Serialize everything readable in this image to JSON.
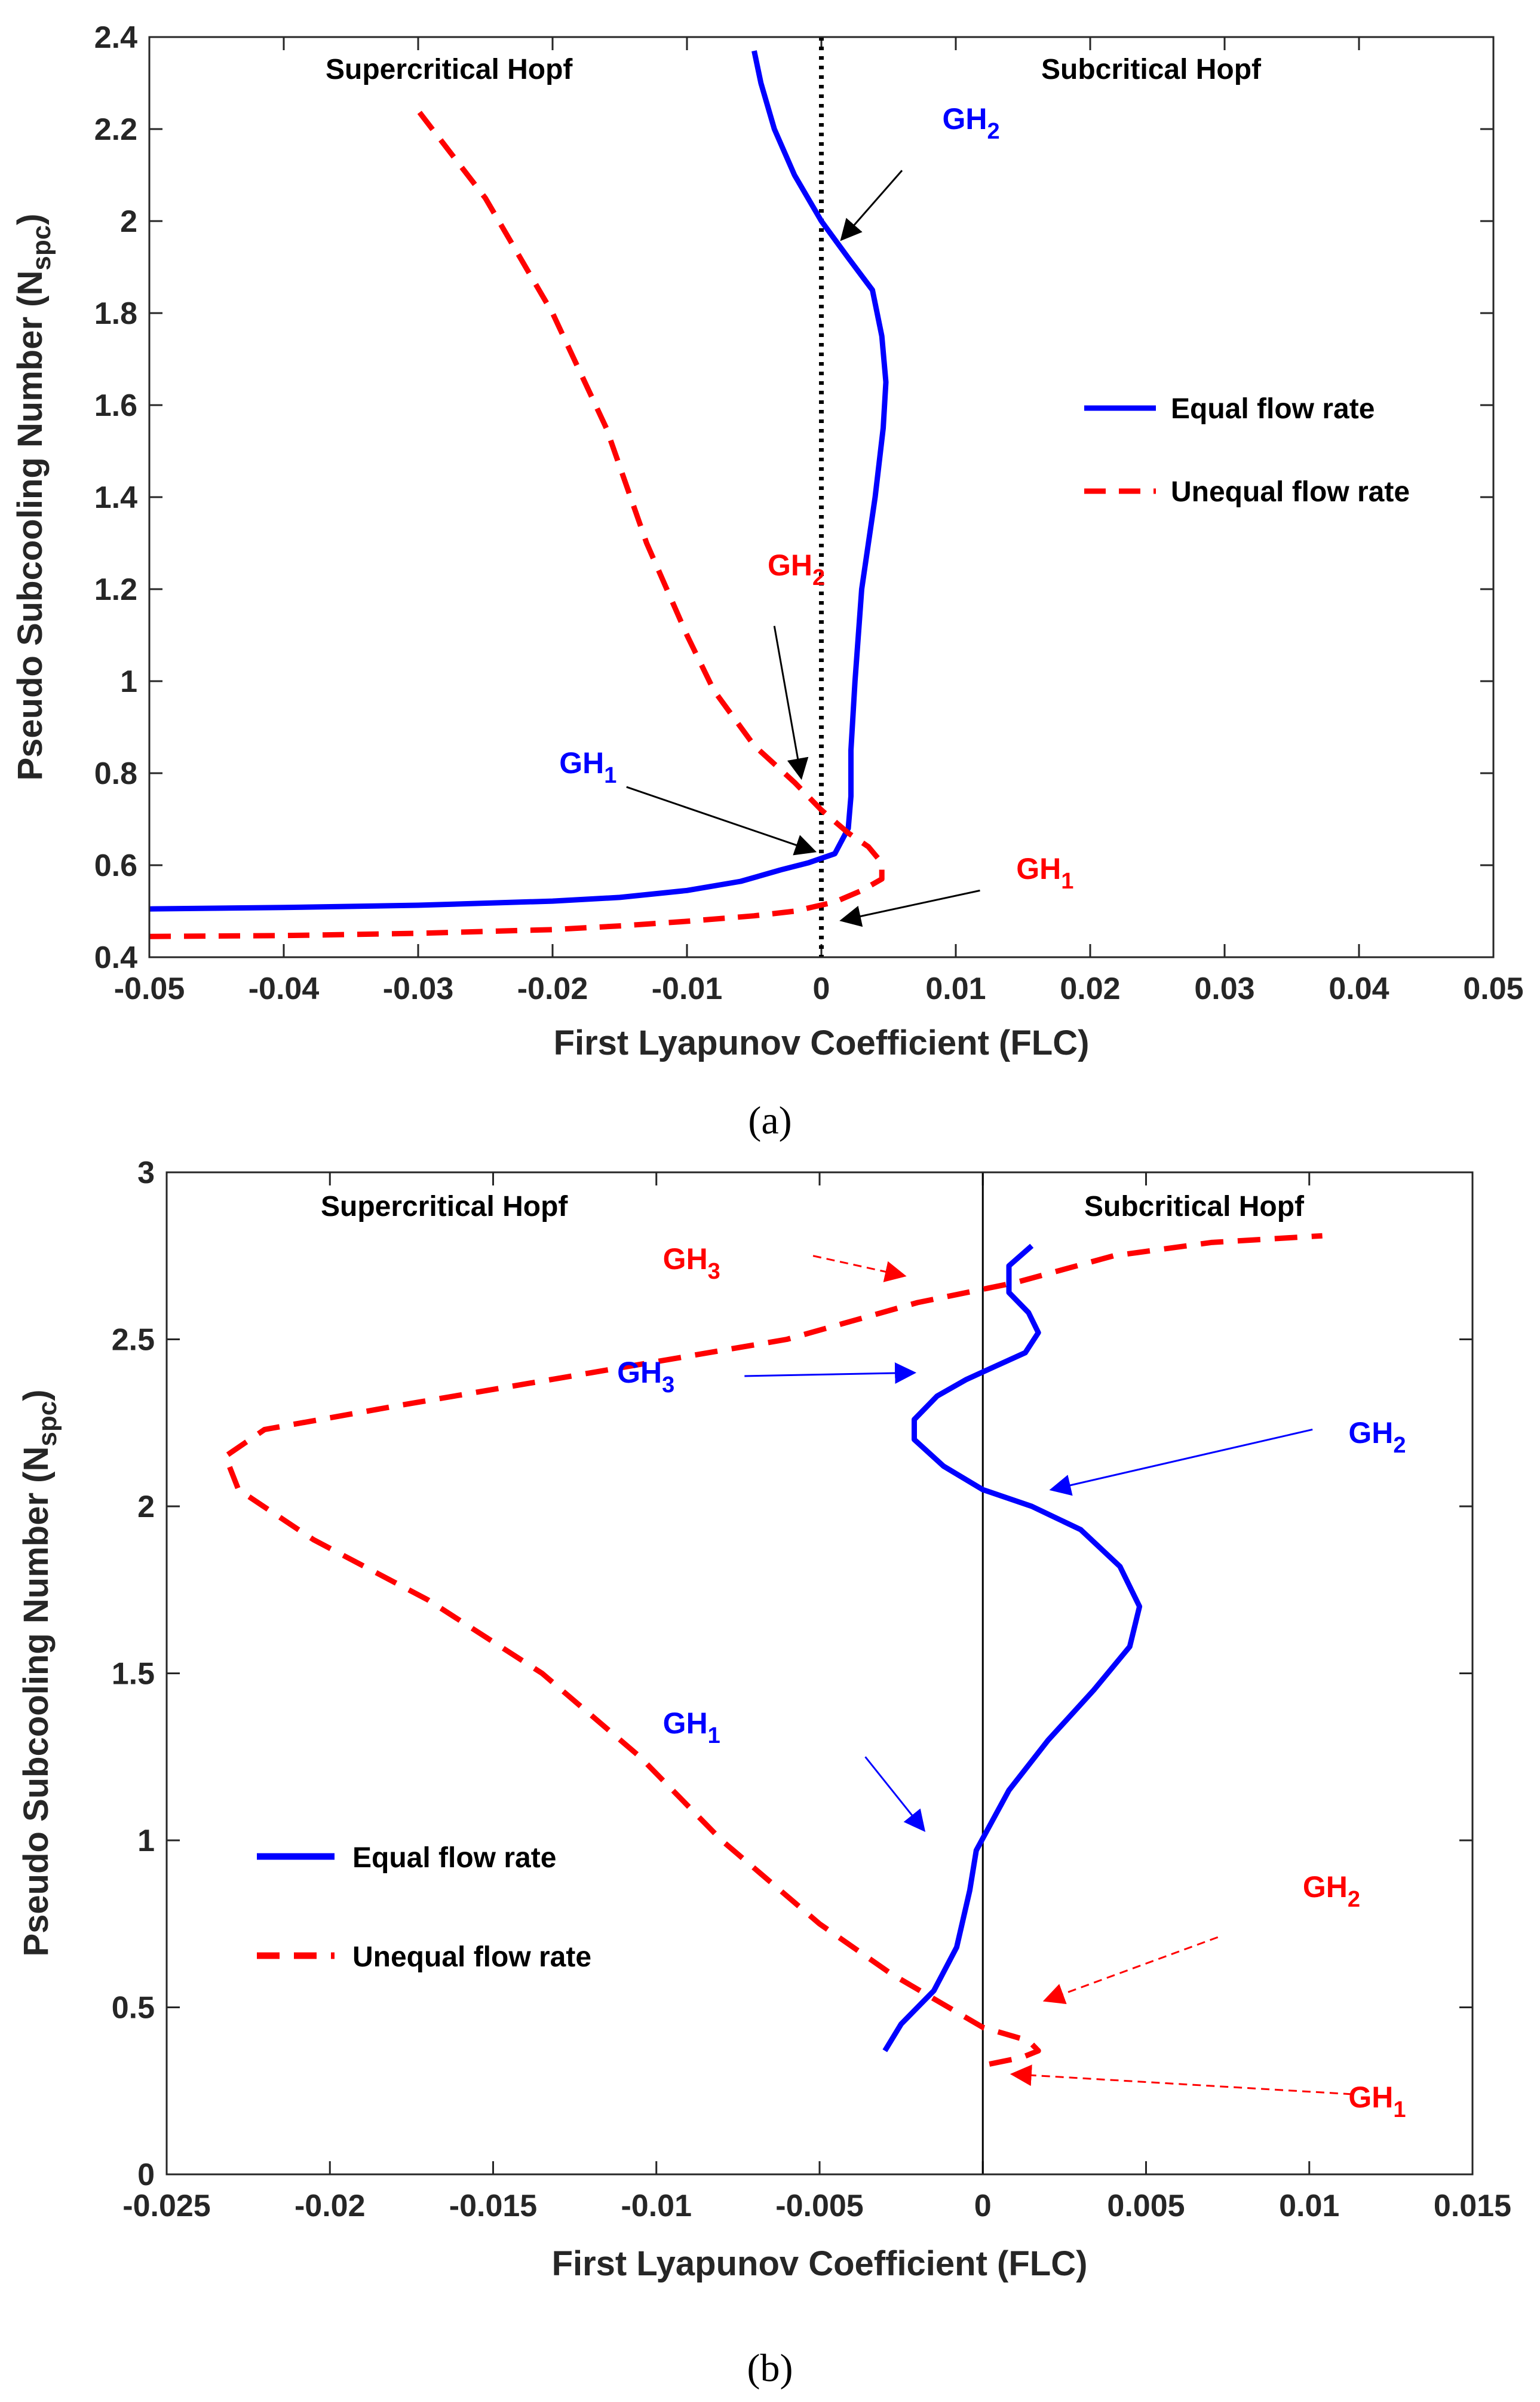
{
  "chart_data": [
    {
      "type": "line",
      "panel_label": "(a)",
      "xlabel": "First Lyapunov Coefficient (FLC)",
      "ylabel": "Pseudo Subcooling Number (N",
      "ylabel_sub": "spc",
      "ylabel_close": ")",
      "xlim": [
        -0.05,
        0.05
      ],
      "ylim": [
        0.4,
        2.4
      ],
      "xticks": [
        -0.05,
        -0.04,
        -0.03,
        -0.02,
        -0.01,
        0,
        0.01,
        0.02,
        0.03,
        0.04,
        0.05
      ],
      "xtick_labels": [
        "-0.05",
        "-0.04",
        "-0.03",
        "-0.02",
        "-0.01",
        "0",
        "0.01",
        "0.02",
        "0.03",
        "0.04",
        "0.05"
      ],
      "yticks": [
        0.4,
        0.6,
        0.8,
        1,
        1.2,
        1.4,
        1.6,
        1.8,
        2,
        2.2,
        2.4
      ],
      "ytick_labels": [
        "0.4",
        "0.6",
        "0.8",
        "1",
        "1.2",
        "1.4",
        "1.6",
        "1.8",
        "2",
        "2.2",
        "2.4"
      ],
      "zero_line": {
        "x": 0,
        "style": "dotted"
      },
      "regions": {
        "left": "Supercritical Hopf",
        "right": "Subcritical Hopf"
      },
      "legend": {
        "position": "middle-right"
      },
      "series": [
        {
          "name": "Equal flow rate",
          "color": "#0000ff",
          "style": "solid",
          "x": [
            -0.05,
            -0.04,
            -0.03,
            -0.02,
            -0.015,
            -0.01,
            -0.006,
            -0.003,
            -0.001,
            0.001,
            0.002,
            0.0022,
            0.0022,
            0.0025,
            0.003,
            0.004,
            0.0046,
            0.0048,
            0.0045,
            0.0038,
            0.002,
            0,
            -0.002,
            -0.0035,
            -0.0045,
            -0.005
          ],
          "y": [
            0.505,
            0.508,
            0.513,
            0.522,
            0.53,
            0.545,
            0.565,
            0.59,
            0.605,
            0.625,
            0.68,
            0.75,
            0.85,
            1.0,
            1.2,
            1.4,
            1.55,
            1.65,
            1.75,
            1.85,
            1.92,
            2.0,
            2.1,
            2.2,
            2.3,
            2.37
          ]
        },
        {
          "name": "Unequal flow rate",
          "color": "#ff0000",
          "style": "dashed",
          "x": [
            -0.05,
            -0.04,
            -0.03,
            -0.02,
            -0.015,
            -0.01,
            -0.005,
            -0.002,
            0.001,
            0.003,
            0.0045,
            0.0045,
            0.0035,
            0.002,
            0,
            -0.002,
            -0.005,
            -0.008,
            -0.01,
            -0.013,
            -0.016,
            -0.02,
            -0.025,
            -0.03
          ],
          "y": [
            0.445,
            0.447,
            0.452,
            0.46,
            0.468,
            0.478,
            0.49,
            0.5,
            0.52,
            0.545,
            0.57,
            0.605,
            0.64,
            0.67,
            0.72,
            0.78,
            0.86,
            0.98,
            1.1,
            1.3,
            1.55,
            1.8,
            2.05,
            2.24
          ]
        }
      ],
      "annotations": [
        {
          "id": "gh2-blue",
          "base": "GH",
          "sub": "2",
          "color": "#0000ff",
          "text_at": [
            0.009,
            2.2
          ],
          "arrow_from": [
            0.006,
            2.11
          ],
          "arrow_to": [
            0.0015,
            1.96
          ],
          "arrow_style": "solid"
        },
        {
          "id": "gh2-red",
          "base": "GH",
          "sub": "2",
          "color": "#ff0000",
          "text_at": [
            -0.004,
            1.23
          ],
          "arrow_from": [
            -0.0035,
            1.12
          ],
          "arrow_to": [
            -0.0015,
            0.79
          ],
          "arrow_style": "solid"
        },
        {
          "id": "gh1-blue",
          "base": "GH",
          "sub": "1",
          "color": "#0000ff",
          "text_at": [
            -0.0195,
            0.8
          ],
          "arrow_from": [
            -0.0145,
            0.77
          ],
          "arrow_to": [
            -0.0005,
            0.63
          ],
          "arrow_style": "solid"
        },
        {
          "id": "gh1-red",
          "base": "GH",
          "sub": "1",
          "color": "#ff0000",
          "text_at": [
            0.0145,
            0.57
          ],
          "arrow_from": [
            0.0118,
            0.545
          ],
          "arrow_to": [
            0.0015,
            0.48
          ],
          "arrow_style": "solid"
        }
      ]
    },
    {
      "type": "line",
      "panel_label": "(b)",
      "xlabel": "First Lyapunov Coefficient (FLC)",
      "ylabel": "Pseudo Subcooling Number (N",
      "ylabel_sub": "spc",
      "ylabel_close": ")",
      "xlim": [
        -0.025,
        0.015
      ],
      "ylim": [
        0,
        3
      ],
      "xticks": [
        -0.025,
        -0.02,
        -0.015,
        -0.01,
        -0.005,
        0,
        0.005,
        0.01,
        0.015
      ],
      "xtick_labels": [
        "-0.025",
        "-0.02",
        "-0.015",
        "-0.01",
        "-0.005",
        "0",
        "0.005",
        "0.01",
        "0.015"
      ],
      "yticks": [
        0,
        0.5,
        1,
        1.5,
        2,
        2.5,
        3
      ],
      "ytick_labels": [
        "0",
        "0.5",
        "1",
        "1.5",
        "2",
        "2.5",
        "3"
      ],
      "zero_line": {
        "x": 0,
        "style": "solid"
      },
      "regions": {
        "left": "Supercritical Hopf",
        "right": "Subcritical Hopf"
      },
      "legend": {
        "position": "lower-left"
      },
      "series": [
        {
          "name": "Equal flow rate",
          "color": "#0000ff",
          "style": "solid",
          "x": [
            -0.003,
            -0.0025,
            -0.0015,
            -0.0008,
            -0.0004,
            -0.0002,
            0.0008,
            0.002,
            0.0034,
            0.0045,
            0.0048,
            0.0042,
            0.003,
            0.0015,
            0,
            -0.0012,
            -0.0021,
            -0.0021,
            -0.0014,
            -0.0005,
            0.0004,
            0.0013,
            0.0017,
            0.0014,
            0.0008,
            0.0008,
            0.0015
          ],
          "y": [
            0.37,
            0.45,
            0.55,
            0.68,
            0.85,
            0.97,
            1.15,
            1.3,
            1.45,
            1.58,
            1.7,
            1.82,
            1.93,
            2.0,
            2.05,
            2.12,
            2.2,
            2.26,
            2.33,
            2.38,
            2.42,
            2.46,
            2.52,
            2.58,
            2.64,
            2.72,
            2.78
          ]
        },
        {
          "name": "Unequal flow rate",
          "color": "#ff0000",
          "style": "dashed",
          "x": [
            0.0002,
            0.0012,
            0.0017,
            0.0014,
            0.0,
            -0.0028,
            -0.005,
            -0.008,
            -0.0105,
            -0.0135,
            -0.017,
            -0.0205,
            -0.0228,
            -0.0232,
            -0.022,
            -0.018,
            -0.012,
            -0.006,
            -0.002,
            0.001,
            0.004,
            0.007,
            0.0104
          ],
          "y": [
            0.33,
            0.35,
            0.37,
            0.4,
            0.44,
            0.6,
            0.75,
            1.0,
            1.25,
            1.5,
            1.72,
            1.9,
            2.05,
            2.15,
            2.23,
            2.3,
            2.4,
            2.5,
            2.61,
            2.67,
            2.75,
            2.79,
            2.81
          ]
        }
      ],
      "annotations": [
        {
          "id": "gh3-red",
          "base": "GH",
          "sub": "3",
          "color": "#ff0000",
          "text_at": [
            -0.0098,
            2.71
          ],
          "arrow_from": [
            -0.0052,
            2.75
          ],
          "arrow_to": [
            -0.0024,
            2.69
          ],
          "arrow_style": "dashed"
        },
        {
          "id": "gh3-blue",
          "base": "GH",
          "sub": "3",
          "color": "#0000ff",
          "text_at": [
            -0.0112,
            2.37
          ],
          "arrow_from": [
            -0.0073,
            2.39
          ],
          "arrow_to": [
            -0.0021,
            2.4
          ],
          "arrow_style": "solid"
        },
        {
          "id": "gh2-blue",
          "base": "GH",
          "sub": "2",
          "color": "#0000ff",
          "text_at": [
            0.0112,
            2.19
          ],
          "arrow_from": [
            0.0101,
            2.23
          ],
          "arrow_to": [
            0.0021,
            2.05
          ],
          "arrow_style": "solid"
        },
        {
          "id": "gh1-blue",
          "base": "GH",
          "sub": "1",
          "color": "#0000ff",
          "text_at": [
            -0.0098,
            1.32
          ],
          "arrow_from": [
            -0.0036,
            1.25
          ],
          "arrow_to": [
            -0.0018,
            1.03
          ],
          "arrow_style": "solid"
        },
        {
          "id": "gh2-red",
          "base": "GH",
          "sub": "2",
          "color": "#ff0000",
          "text_at": [
            0.0098,
            0.83
          ],
          "arrow_from": [
            0.0072,
            0.71
          ],
          "arrow_to": [
            0.0019,
            0.52
          ],
          "arrow_style": "dashed"
        },
        {
          "id": "gh1-red",
          "base": "GH",
          "sub": "1",
          "color": "#ff0000",
          "text_at": [
            0.0112,
            0.2
          ],
          "arrow_from": [
            0.0113,
            0.24
          ],
          "arrow_to": [
            0.0009,
            0.3
          ],
          "arrow_style": "dashed"
        }
      ]
    }
  ]
}
